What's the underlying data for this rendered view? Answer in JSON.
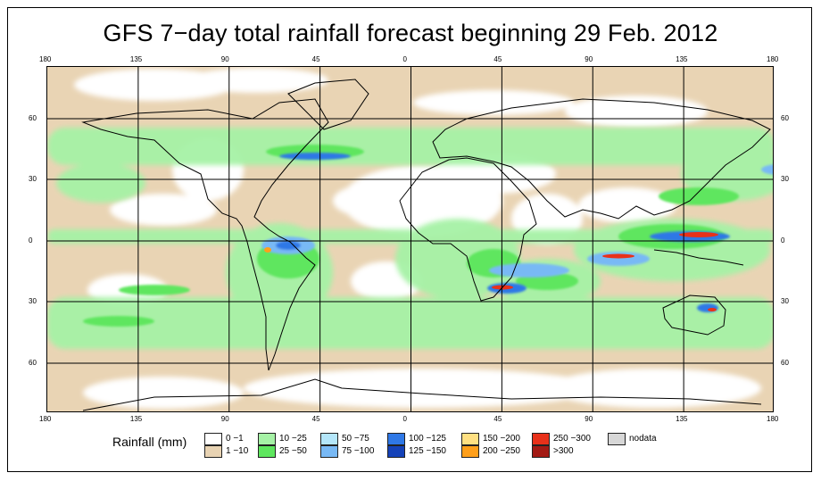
{
  "title": "GFS 7−day total rainfall forecast beginning 29 Feb. 2012",
  "map": {
    "projection": "equirectangular",
    "lon_labels": [
      "180",
      "135",
      "90",
      "45",
      "0",
      "45",
      "90",
      "135",
      "180"
    ],
    "lat_labels": [
      "60",
      "30",
      "0",
      "30",
      "60"
    ],
    "grid": true,
    "lat_range": [
      -85,
      85
    ],
    "lon_range": [
      -180,
      180
    ]
  },
  "legend": {
    "title": "Rainfall (mm)",
    "items": [
      {
        "label": "0 −1",
        "color": "#ffffff"
      },
      {
        "label": "1 −10",
        "color": "#e8d3b3"
      },
      {
        "label": "10 −25",
        "color": "#a6f2a6"
      },
      {
        "label": "25 −50",
        "color": "#5ee65e"
      },
      {
        "label": "50 −75",
        "color": "#b4e6fa"
      },
      {
        "label": "75 −100",
        "color": "#78b9f5"
      },
      {
        "label": "100 −125",
        "color": "#2f78e6"
      },
      {
        "label": "125 −150",
        "color": "#1542b8"
      },
      {
        "label": "150 −200",
        "color": "#ffe082"
      },
      {
        "label": "200 −250",
        "color": "#ff9f1a"
      },
      {
        "label": "250 −300",
        "color": "#e8311a"
      },
      {
        "label": ">300",
        "color": "#a31a14"
      },
      {
        "label": "nodata",
        "color": "#d7d7d7"
      }
    ]
  }
}
